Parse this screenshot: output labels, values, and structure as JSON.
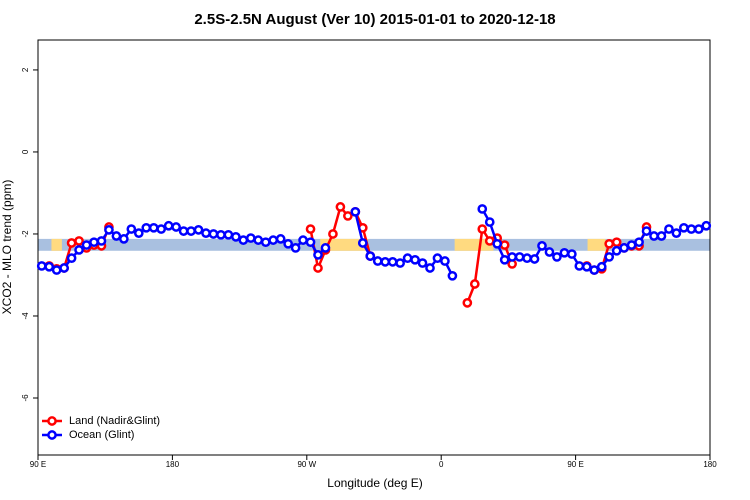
{
  "chart_data": {
    "type": "line",
    "title": "2.5S-2.5N August (Ver 10)   2015-01-01 to 2020-12-18",
    "x_label": "Longitude (deg E)",
    "y_label": "XCO2 - MLO trend (ppm)",
    "xlim": [
      90,
      540
    ],
    "ylim": [
      -7.39,
      2.73
    ],
    "xticks": [
      {
        "value": 90,
        "label": "90 E"
      },
      180,
      {
        "value": 270,
        "label": "90 W"
      },
      {
        "value": 360,
        "label": "0"
      },
      {
        "value": 450,
        "label": "90 E"
      },
      {
        "value": 540,
        "label": "180"
      }
    ],
    "yticks": [
      2,
      0,
      -2,
      -4,
      -6
    ],
    "legend": "bottom-left",
    "reference_band": {
      "ylim": [
        -2.41,
        -2.12
      ],
      "color": "#a9c0e0",
      "land_color": "#ffda80",
      "land_ranges": [
        [
          99,
          106
        ],
        [
          279,
          311
        ],
        [
          369,
          395
        ],
        [
          458,
          470
        ]
      ]
    },
    "x": [
      92.5,
      97.5,
      102.5,
      107.5,
      112.5,
      117.5,
      122.5,
      127.5,
      132.5,
      137.5,
      142.5,
      147.5,
      152.5,
      157.5,
      162.5,
      167.5,
      172.5,
      177.5,
      182.5,
      187.5,
      192.5,
      197.5,
      202.5,
      207.5,
      212.5,
      217.5,
      222.5,
      227.5,
      232.5,
      237.5,
      242.5,
      247.5,
      252.5,
      257.5,
      262.5,
      267.5,
      272.5,
      277.5,
      282.5,
      287.5,
      292.5,
      297.5,
      302.5,
      307.5,
      312.5,
      317.5,
      322.5,
      327.5,
      332.5,
      337.5,
      342.5,
      347.5,
      352.5,
      357.5,
      362.5,
      367.5,
      372.5,
      377.5,
      382.5,
      387.5,
      392.5,
      397.5,
      402.5,
      407.5,
      412.5,
      417.5,
      422.5,
      427.5,
      432.5,
      437.5,
      442.5,
      447.5,
      452.5,
      457.5,
      462.5,
      467.5,
      472.5,
      477.5,
      482.5,
      487.5,
      492.5,
      497.5,
      502.5,
      507.5,
      512.5,
      517.5,
      522.5,
      527.5,
      532.5,
      537.5
    ],
    "series": [
      {
        "name": "Land (Nadir&Glint)",
        "color": "#ff0000",
        "values": [
          null,
          -2.78,
          -2.85,
          -2.83,
          -2.22,
          -2.17,
          -2.34,
          -2.27,
          -2.29,
          -1.83,
          null,
          null,
          null,
          null,
          null,
          null,
          null,
          null,
          null,
          null,
          null,
          null,
          null,
          null,
          null,
          null,
          null,
          null,
          null,
          null,
          null,
          null,
          null,
          null,
          null,
          null,
          -1.88,
          -2.83,
          -2.39,
          -2.0,
          -1.34,
          -1.56,
          -1.46,
          -1.85,
          -2.54,
          null,
          null,
          null,
          null,
          null,
          null,
          null,
          null,
          null,
          null,
          null,
          null,
          -3.68,
          -3.22,
          -1.88,
          -2.17,
          -2.1,
          -2.27,
          -2.73,
          null,
          null,
          null,
          null,
          null,
          null,
          null,
          null,
          null,
          -2.78,
          -2.88,
          -2.85,
          -2.24,
          -2.2,
          -2.34,
          -2.29,
          -2.29,
          -1.83,
          null,
          null,
          null,
          null,
          null,
          null,
          null,
          null
        ]
      },
      {
        "name": "Ocean (Glint)",
        "color": "#0000ff",
        "values": [
          -2.78,
          -2.8,
          -2.88,
          -2.83,
          -2.59,
          -2.39,
          -2.27,
          -2.2,
          -2.17,
          -1.9,
          -2.05,
          -2.12,
          -1.88,
          -1.98,
          -1.85,
          -1.85,
          -1.88,
          -1.8,
          -1.83,
          -1.93,
          -1.93,
          -1.9,
          -1.98,
          -2.0,
          -2.02,
          -2.02,
          -2.07,
          -2.15,
          -2.1,
          -2.15,
          -2.2,
          -2.15,
          -2.12,
          -2.24,
          -2.34,
          -2.15,
          -2.2,
          -2.51,
          -2.34,
          null,
          null,
          null,
          -1.46,
          -2.22,
          -2.54,
          -2.66,
          -2.68,
          -2.68,
          -2.71,
          -2.59,
          -2.63,
          -2.71,
          -2.83,
          -2.59,
          -2.66,
          -3.02,
          null,
          null,
          null,
          -1.39,
          -1.71,
          -2.24,
          -2.63,
          -2.56,
          -2.56,
          -2.59,
          -2.61,
          -2.29,
          -2.44,
          -2.56,
          -2.46,
          -2.49,
          -2.78,
          -2.8,
          -2.88,
          -2.8,
          -2.56,
          -2.41,
          -2.34,
          -2.27,
          -2.2,
          -1.93,
          -2.05,
          -2.05,
          -1.88,
          -1.98,
          -1.85,
          -1.88,
          -1.88,
          -1.8
        ]
      }
    ]
  }
}
